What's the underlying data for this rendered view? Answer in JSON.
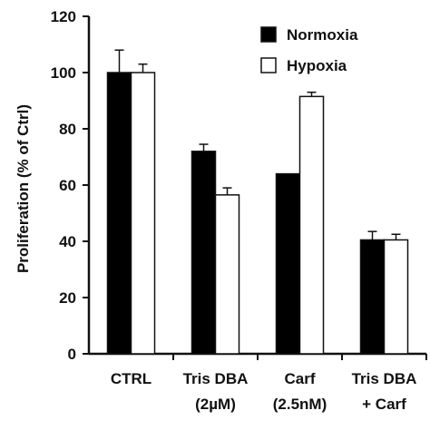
{
  "chart_data": {
    "type": "bar",
    "categories": [
      [
        "CTRL"
      ],
      [
        "Tris DBA",
        "(2µM)"
      ],
      [
        "Carf",
        "(2.5nM)"
      ],
      [
        "Tris DBA",
        "+ Carf"
      ]
    ],
    "series": [
      {
        "name": "Normoxia",
        "color": "#000000",
        "values": [
          100,
          72,
          64,
          40.5
        ],
        "errors": [
          8,
          2.5,
          0,
          3
        ]
      },
      {
        "name": "Hypoxia",
        "color": "#ffffff",
        "values": [
          100,
          56.5,
          91.5,
          40.5
        ],
        "errors": [
          3,
          2.5,
          1.5,
          2
        ]
      }
    ],
    "xlabel": "",
    "ylabel": "Proliferation (% of Ctrl)",
    "ylim": [
      0,
      120
    ],
    "yticks": [
      0,
      20,
      40,
      60,
      80,
      100,
      120
    ],
    "grid": false,
    "legend_position": "top-right"
  }
}
